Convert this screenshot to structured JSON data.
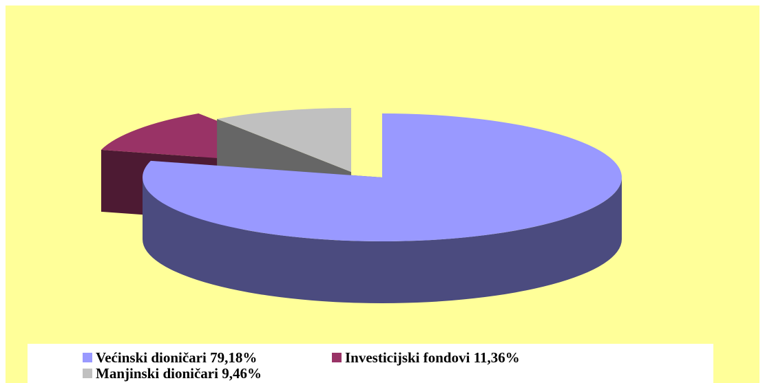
{
  "chart_data": {
    "type": "pie",
    "categories": [
      "Većinski dioničari",
      "Investicijski fondovi",
      "Manjinski dioničari"
    ],
    "values": [
      79.18,
      11.36,
      9.46
    ],
    "value_labels": [
      "79,18%",
      "11,36%",
      "9,46%"
    ],
    "colors": [
      "#9999ff",
      "#993366",
      "#c0c0c0"
    ],
    "side_colors": [
      "#4b4b7f",
      "#4d1a33",
      "#666666"
    ],
    "legend": "bottom",
    "three_d": true
  }
}
